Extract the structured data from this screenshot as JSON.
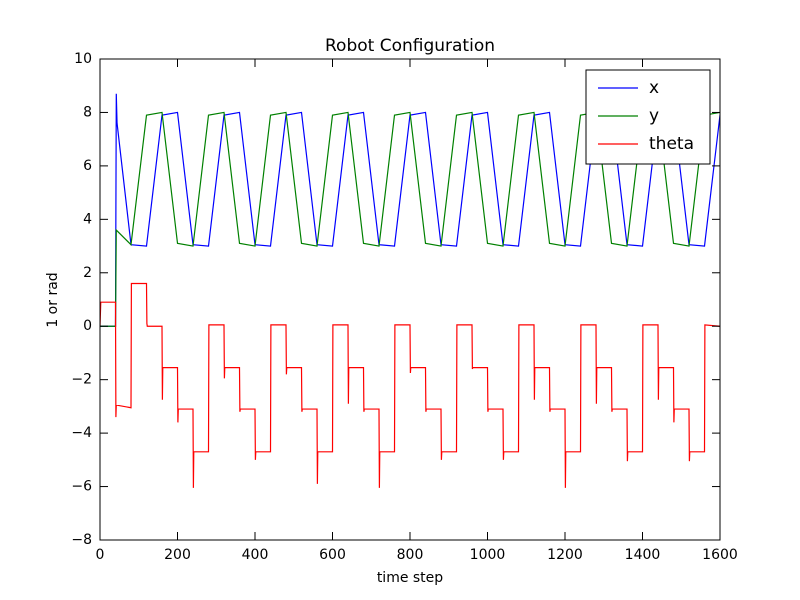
{
  "chart_data": {
    "type": "line",
    "title": "Robot Configuration",
    "x_label": "time step",
    "y_label": "1 or rad",
    "xlim": [
      0,
      1600
    ],
    "ylim": [
      -8,
      10
    ],
    "xticks": [
      0,
      200,
      400,
      600,
      800,
      1000,
      1200,
      1400,
      1600
    ],
    "yticks": [
      {
        "value": -8,
        "label": "−8"
      },
      {
        "value": -6,
        "label": "−6"
      },
      {
        "value": -4,
        "label": "−4"
      },
      {
        "value": -2,
        "label": "−2"
      },
      0,
      2,
      4,
      6,
      8,
      10
    ],
    "legend": "upper right",
    "grid": false,
    "series": [
      {
        "name": "x",
        "color": "#0000ff",
        "x": [
          0,
          40,
          42,
          44,
          80,
          120,
          160,
          200,
          240,
          280,
          320,
          360,
          400,
          440,
          480,
          520,
          560,
          600,
          640,
          680,
          720,
          760,
          800,
          840,
          880,
          920,
          960,
          1000,
          1040,
          1080,
          1120,
          1160,
          1200,
          1240,
          1280,
          1320,
          1360,
          1400,
          1440,
          1480,
          1520,
          1560,
          1600
        ],
        "values": [
          0,
          0,
          8.7,
          7.6,
          3.05,
          3.0,
          7.9,
          8.0,
          3.05,
          3.0,
          7.9,
          8.0,
          3.05,
          3.0,
          7.9,
          8.0,
          3.05,
          3.0,
          7.9,
          8.0,
          3.05,
          3.0,
          7.9,
          8.0,
          3.05,
          3.0,
          7.9,
          8.0,
          3.05,
          3.0,
          7.9,
          8.0,
          3.05,
          3.0,
          7.9,
          8.0,
          3.05,
          3.0,
          7.9,
          8.0,
          3.05,
          3.0,
          7.9
        ]
      },
      {
        "name": "y",
        "color": "#008000",
        "x": [
          0,
          40,
          42,
          80,
          120,
          160,
          200,
          240,
          280,
          320,
          360,
          400,
          440,
          480,
          520,
          560,
          600,
          640,
          680,
          720,
          760,
          800,
          840,
          880,
          920,
          960,
          1000,
          1040,
          1080,
          1120,
          1160,
          1200,
          1240,
          1280,
          1320,
          1360,
          1400,
          1440,
          1480,
          1520,
          1560,
          1600
        ],
        "values": [
          0,
          0,
          3.6,
          3.05,
          7.9,
          8.0,
          3.1,
          3.0,
          7.9,
          8.0,
          3.1,
          3.0,
          7.9,
          8.0,
          3.1,
          3.0,
          7.9,
          8.0,
          3.1,
          3.0,
          7.9,
          8.0,
          3.1,
          3.0,
          7.9,
          8.0,
          3.1,
          3.0,
          7.9,
          8.0,
          3.1,
          3.0,
          7.9,
          8.0,
          3.1,
          3.0,
          7.9,
          8.0,
          3.1,
          3.0,
          7.9,
          8.0
        ]
      },
      {
        "name": "theta",
        "color": "#ff0000",
        "x": [
          0,
          2,
          40,
          41,
          42,
          80,
          81,
          120,
          121,
          122,
          160,
          161,
          162,
          200,
          201,
          202,
          240,
          241,
          242,
          280,
          281,
          320,
          321,
          322,
          360,
          361,
          362,
          400,
          401,
          402,
          440,
          441,
          480,
          481,
          482,
          520,
          521,
          522,
          560,
          561,
          562,
          600,
          601,
          640,
          641,
          642,
          680,
          681,
          682,
          720,
          721,
          722,
          760,
          761,
          800,
          801,
          802,
          840,
          841,
          842,
          880,
          881,
          882,
          920,
          921,
          960,
          961,
          962,
          1000,
          1001,
          1002,
          1040,
          1041,
          1042,
          1080,
          1081,
          1120,
          1121,
          1122,
          1160,
          1161,
          1162,
          1200,
          1201,
          1202,
          1240,
          1241,
          1280,
          1281,
          1282,
          1320,
          1321,
          1322,
          1360,
          1361,
          1362,
          1400,
          1401,
          1440,
          1441,
          1442,
          1480,
          1481,
          1482,
          1520,
          1521,
          1522,
          1560,
          1561,
          1600
        ],
        "values": [
          0,
          0.9,
          0.9,
          -3.4,
          -2.95,
          -3.05,
          1.6,
          1.6,
          0.1,
          0,
          0,
          -2.75,
          -1.55,
          -1.55,
          -3.6,
          -3.1,
          -3.1,
          -6.05,
          -4.7,
          -4.7,
          0.05,
          0.05,
          -1.95,
          -1.55,
          -1.55,
          -3.2,
          -3.1,
          -3.1,
          -5.0,
          -4.7,
          -4.7,
          0.05,
          0.05,
          -1.8,
          -1.55,
          -1.55,
          -3.2,
          -3.1,
          -3.1,
          -5.9,
          -4.7,
          -4.7,
          0.05,
          0.05,
          -2.9,
          -1.55,
          -1.55,
          -3.2,
          -3.1,
          -3.1,
          -6.05,
          -4.7,
          -4.7,
          0.05,
          0.05,
          -1.75,
          -1.55,
          -1.55,
          -3.2,
          -3.1,
          -3.1,
          -5.0,
          -4.7,
          -4.7,
          0.05,
          0.05,
          -1.6,
          -1.55,
          -1.55,
          -3.2,
          -3.1,
          -3.1,
          -5.0,
          -4.7,
          -4.7,
          0.05,
          0.05,
          -2.75,
          -1.55,
          -1.55,
          -3.2,
          -3.1,
          -3.1,
          -6.05,
          -4.7,
          -4.7,
          0.05,
          0.05,
          -2.9,
          -1.55,
          -1.55,
          -3.2,
          -3.1,
          -3.1,
          -5.05,
          -4.7,
          -4.7,
          0.05,
          0.05,
          -2.75,
          -1.55,
          -1.55,
          -3.6,
          -3.1,
          -3.1,
          -5.05,
          -4.7,
          -4.7,
          0.05,
          0
        ]
      }
    ]
  }
}
